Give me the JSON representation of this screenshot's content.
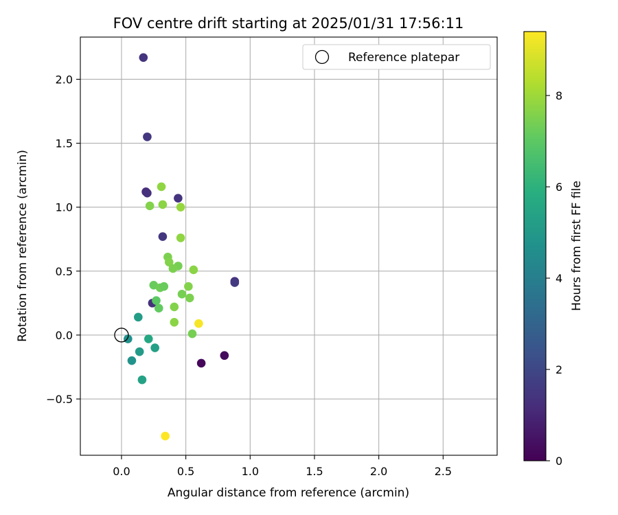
{
  "chart_data": {
    "type": "scatter",
    "title": "FOV centre drift starting at 2025/01/31 17:56:11",
    "xlabel": "Angular distance from reference (arcmin)",
    "ylabel": "Rotation from reference (arcmin)",
    "xlim": [
      -0.32,
      2.92
    ],
    "ylim": [
      -0.94,
      2.33
    ],
    "x_ticks": [
      0.0,
      0.5,
      1.0,
      1.5,
      2.0,
      2.5
    ],
    "x_tick_labels": [
      "0.0",
      "0.5",
      "1.0",
      "1.5",
      "2.0",
      "2.5"
    ],
    "y_ticks": [
      -0.5,
      0.0,
      0.5,
      1.0,
      1.5,
      2.0
    ],
    "y_tick_labels": [
      "−0.5",
      "0.0",
      "0.5",
      "1.0",
      "1.5",
      "2.0"
    ],
    "grid": true,
    "legend": {
      "placement": "top-right",
      "entries": [
        {
          "label": "Reference platepar",
          "marker": "open-circle"
        }
      ]
    },
    "reference_point": {
      "x": 0.0,
      "y": 0.0
    },
    "colorbar": {
      "label": "Hours from first FF file",
      "colormap": "viridis",
      "range": [
        0,
        9.4
      ],
      "ticks": [
        0,
        2,
        4,
        6,
        8
      ],
      "tick_labels": [
        "0",
        "2",
        "4",
        "6",
        "8"
      ]
    },
    "series": [
      {
        "points": [
          {
            "x": 0.17,
            "y": 2.17,
            "c": 1.4
          },
          {
            "x": 0.2,
            "y": 1.55,
            "c": 1.5
          },
          {
            "x": 0.19,
            "y": 1.12,
            "c": 1.2
          },
          {
            "x": 0.2,
            "y": 1.11,
            "c": 1.3
          },
          {
            "x": 0.44,
            "y": 1.07,
            "c": 1.4
          },
          {
            "x": 0.32,
            "y": 0.77,
            "c": 1.5
          },
          {
            "x": 0.88,
            "y": 0.42,
            "c": 1.2
          },
          {
            "x": 0.88,
            "y": 0.41,
            "c": 1.6
          },
          {
            "x": 0.24,
            "y": 0.25,
            "c": 1.3
          },
          {
            "x": 0.62,
            "y": -0.22,
            "c": 0.2
          },
          {
            "x": 0.8,
            "y": -0.16,
            "c": 0.3
          },
          {
            "x": 0.31,
            "y": 1.16,
            "c": 7.8
          },
          {
            "x": 0.22,
            "y": 1.01,
            "c": 7.6
          },
          {
            "x": 0.32,
            "y": 1.02,
            "c": 7.7
          },
          {
            "x": 0.46,
            "y": 1.0,
            "c": 7.9
          },
          {
            "x": 0.46,
            "y": 0.76,
            "c": 7.8
          },
          {
            "x": 0.36,
            "y": 0.61,
            "c": 7.5
          },
          {
            "x": 0.37,
            "y": 0.57,
            "c": 7.6
          },
          {
            "x": 0.44,
            "y": 0.54,
            "c": 7.4
          },
          {
            "x": 0.4,
            "y": 0.52,
            "c": 7.5
          },
          {
            "x": 0.56,
            "y": 0.51,
            "c": 7.7
          },
          {
            "x": 0.25,
            "y": 0.39,
            "c": 7.2
          },
          {
            "x": 0.3,
            "y": 0.37,
            "c": 7.3
          },
          {
            "x": 0.33,
            "y": 0.38,
            "c": 7.2
          },
          {
            "x": 0.52,
            "y": 0.38,
            "c": 7.6
          },
          {
            "x": 0.47,
            "y": 0.32,
            "c": 7.4
          },
          {
            "x": 0.53,
            "y": 0.29,
            "c": 7.5
          },
          {
            "x": 0.27,
            "y": 0.27,
            "c": 7.0
          },
          {
            "x": 0.29,
            "y": 0.21,
            "c": 7.1
          },
          {
            "x": 0.41,
            "y": 0.22,
            "c": 7.6
          },
          {
            "x": 0.41,
            "y": 0.1,
            "c": 7.7
          },
          {
            "x": 0.55,
            "y": 0.01,
            "c": 7.4
          },
          {
            "x": 0.6,
            "y": 0.09,
            "c": 9.3
          },
          {
            "x": 0.34,
            "y": -0.79,
            "c": 9.4
          },
          {
            "x": 0.13,
            "y": 0.14,
            "c": 5.2
          },
          {
            "x": 0.05,
            "y": -0.03,
            "c": 4.7
          },
          {
            "x": 0.21,
            "y": -0.03,
            "c": 5.6
          },
          {
            "x": 0.26,
            "y": -0.1,
            "c": 5.3
          },
          {
            "x": 0.14,
            "y": -0.13,
            "c": 5.1
          },
          {
            "x": 0.08,
            "y": -0.2,
            "c": 4.8
          },
          {
            "x": 0.16,
            "y": -0.35,
            "c": 5.4
          }
        ]
      }
    ]
  }
}
